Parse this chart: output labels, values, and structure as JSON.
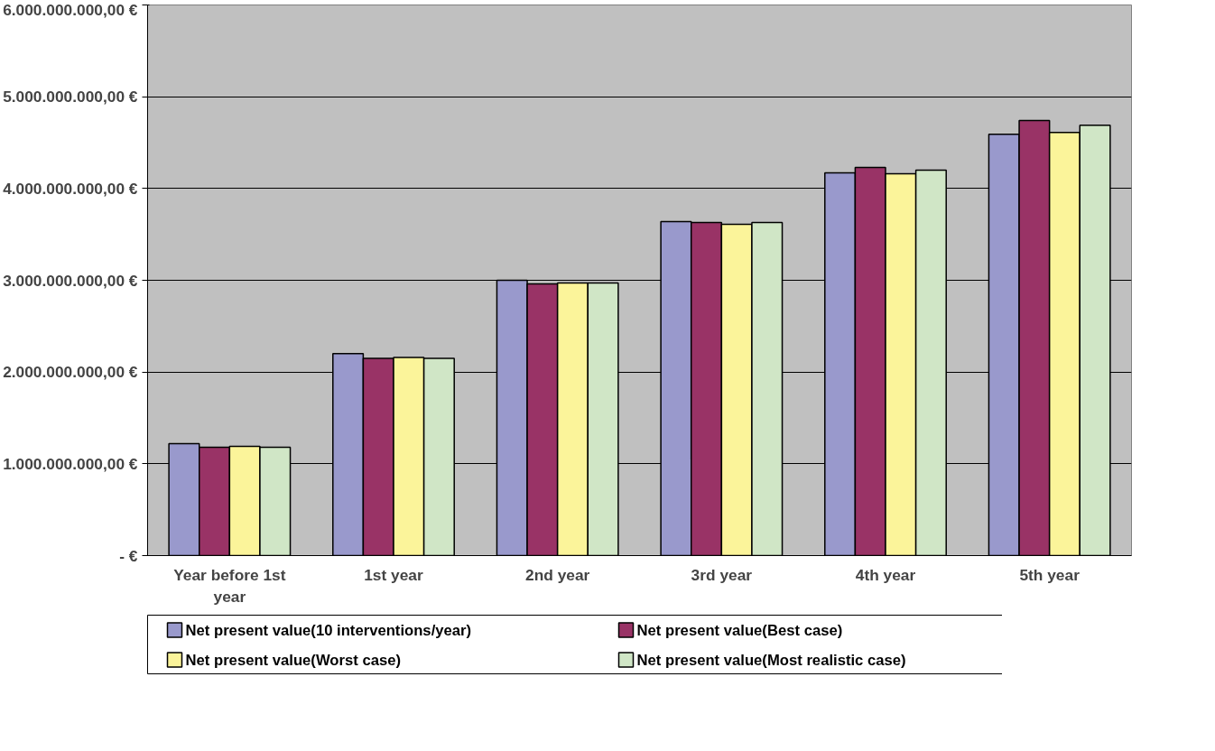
{
  "chart_data": {
    "type": "bar",
    "categories": [
      "Year before 1st year",
      "1st year",
      "2nd year",
      "3rd year",
      "4th year",
      "5th year"
    ],
    "series": [
      {
        "name": "Net present value(10 interventions/year)",
        "color": "#9999cc",
        "values": [
          1220000000,
          2200000000,
          3000000000,
          3640000000,
          4170000000,
          4590000000
        ]
      },
      {
        "name": "Net present value(Best case)",
        "color": "#993366",
        "values": [
          1180000000,
          2150000000,
          2960000000,
          3630000000,
          4230000000,
          4740000000
        ]
      },
      {
        "name": "Net present value(Worst case)",
        "color": "#fbf49a",
        "values": [
          1190000000,
          2160000000,
          2970000000,
          3610000000,
          4160000000,
          4610000000
        ]
      },
      {
        "name": "Net present value(Most realistic case)",
        "color": "#d0e6c6",
        "values": [
          1180000000,
          2150000000,
          2970000000,
          3630000000,
          4200000000,
          4690000000
        ]
      }
    ],
    "ylim": [
      0,
      6000000000
    ],
    "yticks": [
      {
        "value": 0,
        "label": "- €"
      },
      {
        "value": 1000000000,
        "label": "1.000.000.000,00 €"
      },
      {
        "value": 2000000000,
        "label": "2.000.000.000,00 €"
      },
      {
        "value": 3000000000,
        "label": "3.000.000.000,00 €"
      },
      {
        "value": 4000000000,
        "label": "4.000.000.000,00 €"
      },
      {
        "value": 5000000000,
        "label": "5.000.000.000,00 €"
      },
      {
        "value": 6000000000,
        "label": "6.000.000.000,00 €"
      }
    ],
    "grid": "y",
    "legend": "bottom"
  }
}
